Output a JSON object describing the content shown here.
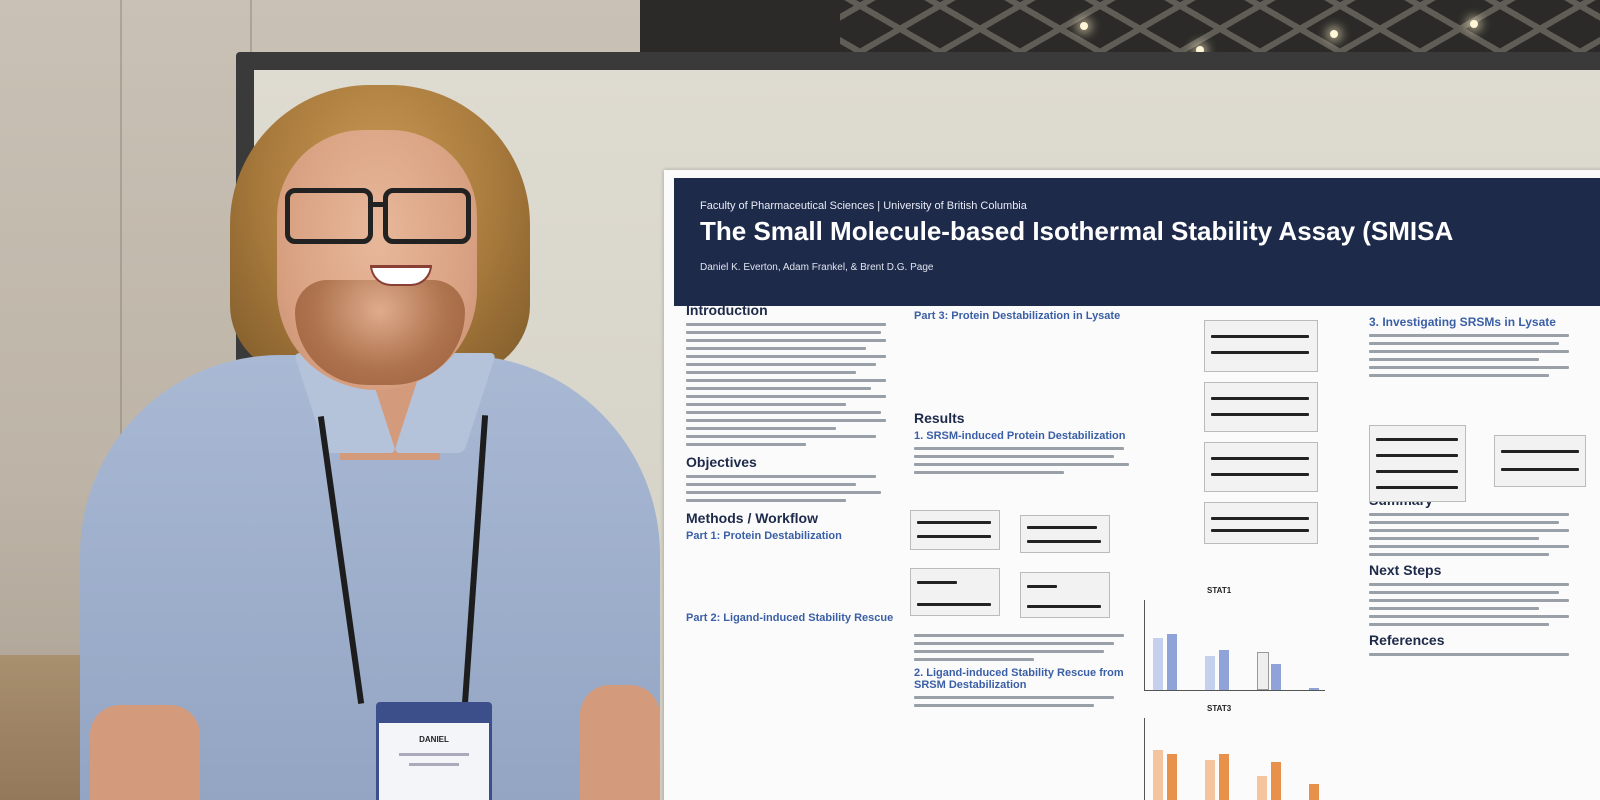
{
  "poster": {
    "faculty": "Faculty of Pharmaceutical Sciences | University of British Columbia",
    "title": "The Small Molecule-based Isothermal Stability Assay (SMISA",
    "authors": "Daniel K. Everton, Adam Frankel, & Brent D.G. Page",
    "sections": {
      "introduction": "Introduction",
      "objectives": "Objectives",
      "methods": "Methods / Workflow",
      "part1": "Part 1: Protein Destabilization",
      "part2": "Part 2: Ligand-induced Stability Rescue",
      "part3": "Part 3: Protein Destabilization in Lysate",
      "results": "Results",
      "result1": "1. SRSM-induced Protein Destabilization",
      "result2": "2. Ligand-induced Stability Rescue from SRSM Destabilization",
      "investigating": "3. Investigating SRSMs in Lysate",
      "summary": "Summary",
      "next_steps": "Next Steps",
      "references": "References",
      "stat1": "STAT1",
      "stat3": "STAT3"
    }
  },
  "badge": {
    "name": "DANIEL"
  },
  "colors": {
    "poster_header": "#1e2a4a",
    "subheading": "#3a5fa6",
    "bar_blue": "#8fa3d8",
    "bar_orange": "#e8914a",
    "shirt": "#a2b3cf"
  }
}
